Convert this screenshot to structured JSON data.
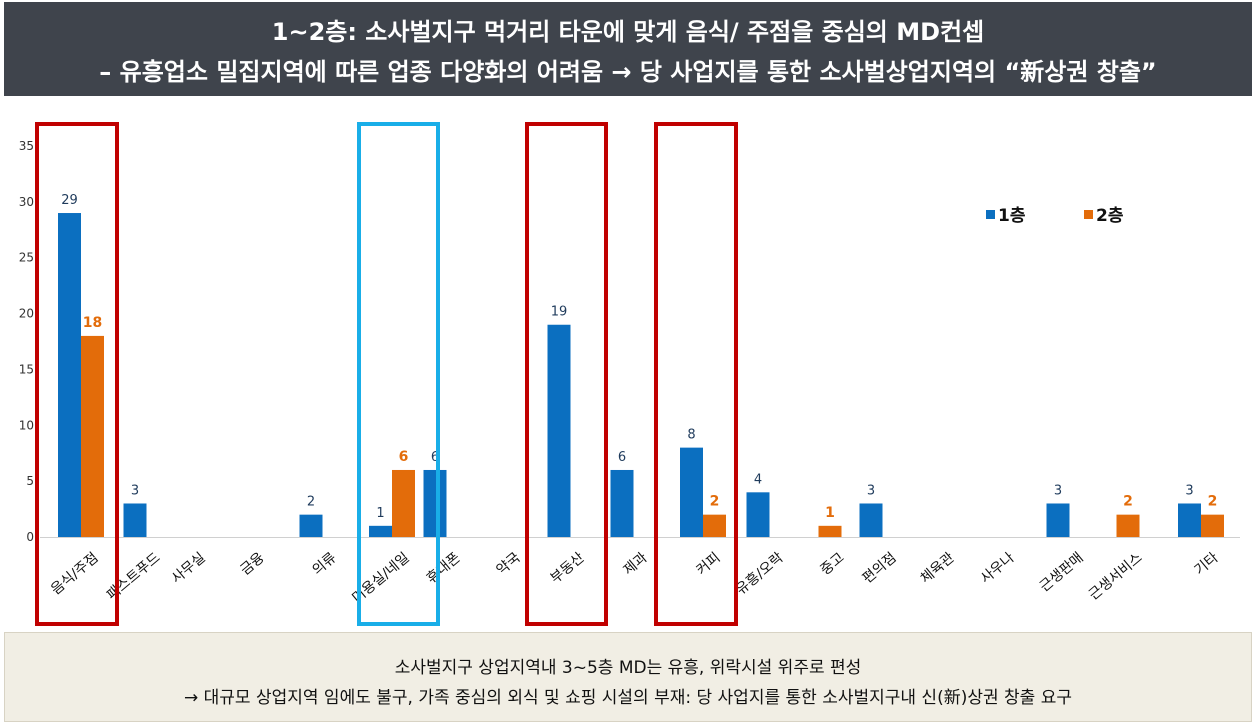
{
  "header": {
    "line1": "1~2층: 소사벌지구 먹거리 타운에 맞게 음식/ 주점을 중심의 MD컨셉",
    "line2": "– 유흥업소 밀집지역에 따른 업종 다양화의 어려움 → 당 사업지를 통한 소사벌상업지역의 “新상권 창출”"
  },
  "footer": {
    "line1": "소사벌지구 상업지역내 3~5층 MD는 유흥, 위락시설 위주로 편성",
    "line2": "→ 대규모 상업지역 임에도 불구, 가족 중심의 외식 및 쇼핑 시설의 부재: 당 사업지를 통한 소사벌지구내 신(新)상권 창출 요구"
  },
  "chart_data": {
    "type": "bar",
    "categories": [
      "음식/주점",
      "패스트푸드",
      "사무실",
      "금융",
      "의류",
      "미용실/네일",
      "휴대폰",
      "약국",
      "부동산",
      "제과",
      "커피",
      "유흥/오락",
      "중고",
      "편의점",
      "체육관",
      "사우나",
      "근생판매",
      "근생서비스",
      "기타"
    ],
    "series": [
      {
        "name": "1층",
        "color": "#0b6fc0",
        "values": [
          29,
          3,
          0,
          0,
          2,
          1,
          6,
          0,
          19,
          6,
          8,
          4,
          0,
          3,
          0,
          0,
          3,
          0,
          3
        ]
      },
      {
        "name": "2층",
        "color": "#e36c0a",
        "values": [
          18,
          0,
          0,
          0,
          0,
          6,
          0,
          0,
          0,
          0,
          2,
          0,
          1,
          0,
          0,
          0,
          0,
          2,
          2
        ]
      }
    ],
    "yticks": [
      "0",
      "5",
      "10",
      "15",
      "20",
      "25",
      "30",
      "35"
    ],
    "ylim": [
      0,
      35
    ],
    "legend_position": "top-right",
    "highlight_colors": {
      "red": "#c00000",
      "blue": "#19aee8"
    }
  }
}
